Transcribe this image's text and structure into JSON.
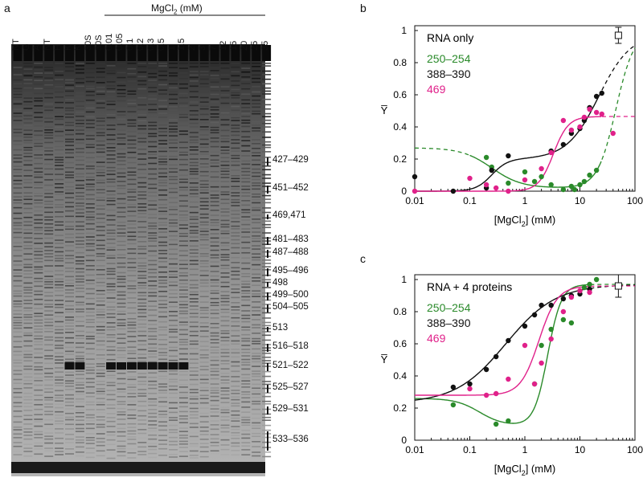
{
  "panel_labels": {
    "a": "a",
    "b": "b",
    "c": "c"
  },
  "gel": {
    "header_label": "MgCl",
    "header_sub": "2",
    "header_unit": " (mM)",
    "lane_labels": [
      "NT",
      "G",
      "A",
      "NT",
      "H",
      "K",
      "K",
      "30S",
      "30S",
      "0.01",
      "0.05",
      "0.1",
      "0.2",
      "0.3",
      "0.5",
      "1",
      "1.5",
      "2",
      "3",
      "7",
      "12",
      "15",
      "20",
      "25",
      "35"
    ],
    "band_labels": [
      "427–429",
      "451–452",
      "469,471",
      "481–483",
      "487–488",
      "495–496",
      "498",
      "499–500",
      "504–505",
      "513",
      "516–518",
      "521–522",
      "525–527",
      "529–531",
      "533–536"
    ]
  },
  "chart_data": [
    {
      "type": "scatter",
      "panel": "b",
      "title": "RNA only",
      "xlabel": "[MgCl2] (mM)",
      "xlabel_main": "[MgCl",
      "xlabel_sub": "2",
      "xlabel_tail": "] (mM)",
      "ylabel": "Y̅",
      "xscale": "log",
      "xlim": [
        0.01,
        100
      ],
      "ylim": [
        0,
        1
      ],
      "xticks": [
        0.01,
        0.1,
        1,
        10,
        100
      ],
      "xtick_labels": [
        "0.01",
        "0.1",
        "1",
        "10",
        "100"
      ],
      "yticks": [
        0,
        0.2,
        0.4,
        0.6,
        0.8,
        1
      ],
      "ytick_labels": [
        "0",
        "0.2",
        "0.4",
        "0.6",
        "0.8",
        "1"
      ],
      "series": [
        {
          "name": "250–254",
          "color": "#2a8a2a",
          "x": [
            0.2,
            0.25,
            0.5,
            1,
            1.5,
            2,
            3,
            5,
            7,
            8,
            10,
            12,
            15,
            20
          ],
          "y": [
            0.21,
            0.15,
            0.05,
            0.12,
            0.06,
            0.09,
            0.04,
            0.01,
            0.03,
            0.01,
            0.04,
            0.06,
            0.1,
            0.13
          ]
        },
        {
          "name": "388–390",
          "color": "#111111",
          "x": [
            0.01,
            0.05,
            0.2,
            0.25,
            0.5,
            3,
            5,
            7,
            10,
            12,
            15,
            20,
            25
          ],
          "y": [
            0.09,
            0,
            0.02,
            0.13,
            0.22,
            0.25,
            0.29,
            0.36,
            0.39,
            0.44,
            0.52,
            0.59,
            0.61
          ]
        },
        {
          "name": "469",
          "color": "#e0218a",
          "x": [
            0.01,
            0.1,
            0.2,
            0.3,
            0.5,
            1,
            2,
            3,
            5,
            7,
            10,
            12,
            15,
            20,
            25,
            40
          ],
          "y": [
            0,
            0.08,
            0.04,
            0.02,
            0,
            0.07,
            0.14,
            0.24,
            0.44,
            0.38,
            0.4,
            0.46,
            0.51,
            0.49,
            0.48,
            0.36
          ]
        }
      ],
      "reference_point": {
        "x": 50,
        "y": 0.97,
        "error": 0.05
      }
    },
    {
      "type": "scatter",
      "panel": "c",
      "title": "RNA + 4 proteins",
      "xlabel": "[MgCl2] (mM)",
      "xlabel_main": "[MgCl",
      "xlabel_sub": "2",
      "xlabel_tail": "] (mM)",
      "ylabel": "Y̅",
      "xscale": "log",
      "xlim": [
        0.01,
        100
      ],
      "ylim": [
        0,
        1
      ],
      "xticks": [
        0.01,
        0.1,
        1,
        10,
        100
      ],
      "xtick_labels": [
        "0.01",
        "0.1",
        "1",
        "10",
        "100"
      ],
      "yticks": [
        0,
        0.2,
        0.4,
        0.6,
        0.8,
        1
      ],
      "ytick_labels": [
        "0",
        "0.2",
        "0.4",
        "0.6",
        "0.8",
        "1"
      ],
      "series": [
        {
          "name": "250–254",
          "color": "#2a8a2a",
          "x": [
            0.05,
            0.3,
            0.5,
            1.5,
            2,
            3,
            5,
            7,
            10,
            12,
            15,
            20
          ],
          "y": [
            0.22,
            0.1,
            0.12,
            0.35,
            0.59,
            0.69,
            0.75,
            0.73,
            0.93,
            0.95,
            0.97,
            1.0
          ]
        },
        {
          "name": "388–390",
          "color": "#111111",
          "x": [
            0.05,
            0.1,
            0.2,
            0.3,
            0.5,
            1,
            1.5,
            2,
            3,
            5,
            7,
            10,
            15
          ],
          "y": [
            0.33,
            0.35,
            0.44,
            0.52,
            0.62,
            0.71,
            0.78,
            0.84,
            0.84,
            0.88,
            0.9,
            0.91,
            0.94
          ]
        },
        {
          "name": "469",
          "color": "#e0218a",
          "x": [
            0.1,
            0.2,
            0.3,
            0.5,
            1,
            1.5,
            2,
            3,
            5,
            7,
            10,
            15
          ],
          "y": [
            0.32,
            0.28,
            0.29,
            0.38,
            0.59,
            0.35,
            0.48,
            0.63,
            0.8,
            0.89,
            0.93,
            0.92
          ]
        }
      ],
      "reference_point": {
        "x": 50,
        "y": 0.96,
        "error": 0.07
      }
    }
  ]
}
